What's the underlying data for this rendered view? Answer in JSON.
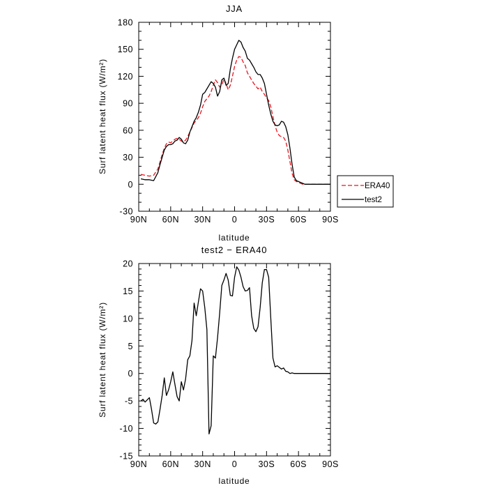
{
  "chart_data": [
    {
      "type": "line",
      "title": "JJA",
      "xlabel": "latitude",
      "ylabel": "Surf latent heat flux (W/m²)",
      "ylim": [
        -30,
        180
      ],
      "xlim": [
        90,
        -90
      ],
      "x_ticks": [
        90,
        60,
        30,
        0,
        -30,
        -60,
        -90
      ],
      "x_tick_labels": [
        "90N",
        "60N",
        "30N",
        "0",
        "30S",
        "60S",
        "90S"
      ],
      "y_ticks": [
        -30,
        0,
        30,
        60,
        90,
        120,
        150,
        180
      ],
      "y_tick_labels": [
        "-30",
        "0",
        "30",
        "60",
        "90",
        "120",
        "150",
        "180"
      ],
      "legend": {
        "position": "outside-right",
        "entries": [
          "ERA40",
          "test2"
        ]
      },
      "colors": {
        "ERA40": "#e8141e",
        "test2": "#000000"
      },
      "x": [
        88,
        84,
        80,
        76,
        72,
        70,
        68,
        66,
        64,
        62,
        60,
        58,
        56,
        54,
        52,
        50,
        48,
        46,
        44,
        42,
        40,
        38,
        36,
        34,
        32,
        30,
        28,
        26,
        24,
        22,
        20,
        18,
        16,
        14,
        12,
        10,
        8,
        6,
        4,
        2,
        0,
        -2,
        -4,
        -6,
        -8,
        -10,
        -12,
        -14,
        -16,
        -18,
        -20,
        -22,
        -24,
        -26,
        -28,
        -30,
        -32,
        -34,
        -36,
        -38,
        -40,
        -42,
        -44,
        -46,
        -48,
        -50,
        -52,
        -54,
        -56,
        -58,
        -60,
        -62,
        -64,
        -66,
        -68,
        -70,
        -72,
        -74,
        -76,
        -78,
        -80,
        -82,
        -84,
        -86,
        -88,
        -90
      ],
      "series": [
        {
          "name": "ERA40",
          "style": "dashed",
          "values": [
            11,
            10,
            9,
            10,
            17,
            25,
            33,
            40,
            45,
            47,
            46,
            48,
            50,
            51,
            50,
            48,
            47,
            49,
            53,
            58,
            63,
            68,
            71,
            74,
            79,
            86,
            92,
            95,
            98,
            103,
            110,
            116,
            113,
            108,
            110,
            117,
            112,
            105,
            110,
            120,
            131,
            138,
            142,
            141,
            136,
            132,
            124,
            120,
            116,
            112,
            109,
            106,
            108,
            103,
            100,
            96,
            93,
            86,
            75,
            65,
            58,
            54,
            53,
            52,
            48,
            38,
            25,
            12,
            5,
            3,
            2,
            1,
            0,
            0,
            0,
            0,
            0,
            0,
            0,
            0,
            0,
            0,
            0,
            0,
            0,
            0
          ]
        },
        {
          "name": "test2",
          "style": "solid",
          "values": [
            6,
            5,
            5,
            4,
            13,
            22,
            30,
            38,
            42,
            44,
            44,
            45,
            48,
            49,
            52,
            50,
            46,
            45,
            49,
            58,
            64,
            70,
            74,
            80,
            88,
            100,
            102,
            106,
            110,
            114,
            112,
            108,
            98,
            103,
            116,
            118,
            110,
            112,
            128,
            140,
            150,
            155,
            160,
            158,
            152,
            148,
            140,
            138,
            134,
            130,
            125,
            122,
            122,
            118,
            112,
            100,
            88,
            78,
            70,
            66,
            65,
            66,
            70,
            69,
            64,
            55,
            40,
            22,
            8,
            4,
            3,
            2,
            1,
            0,
            0,
            0,
            0,
            0,
            0,
            0,
            0,
            0,
            0,
            0,
            0,
            0
          ]
        }
      ]
    },
    {
      "type": "line",
      "title": "test2 − ERA40",
      "xlabel": "latitude",
      "ylabel": "Surf latent heat flux (W/m²)",
      "ylim": [
        -15,
        20
      ],
      "xlim": [
        90,
        -90
      ],
      "x_ticks": [
        90,
        60,
        30,
        0,
        -30,
        -60,
        -90
      ],
      "x_tick_labels": [
        "90N",
        "60N",
        "30N",
        "0",
        "30S",
        "60S",
        "90S"
      ],
      "y_ticks": [
        -15,
        -10,
        -5,
        0,
        5,
        10,
        15,
        20
      ],
      "y_tick_labels": [
        "-15",
        "-10",
        "-5",
        "0",
        "5",
        "10",
        "15",
        "20"
      ],
      "colors": {
        "diff": "#000000"
      },
      "x": [
        88,
        86,
        84,
        82,
        80,
        78,
        76,
        74,
        72,
        70,
        68,
        66,
        64,
        62,
        60,
        58,
        56,
        54,
        52,
        50,
        48,
        46,
        44,
        42,
        40,
        38,
        36,
        34,
        32,
        30,
        28,
        26,
        24,
        22,
        20,
        18,
        16,
        14,
        12,
        10,
        8,
        6,
        4,
        2,
        0,
        -2,
        -4,
        -6,
        -8,
        -10,
        -12,
        -14,
        -16,
        -18,
        -20,
        -22,
        -24,
        -26,
        -28,
        -30,
        -32,
        -34,
        -36,
        -38,
        -40,
        -42,
        -44,
        -46,
        -48,
        -50,
        -52,
        -54,
        -56,
        -58,
        -60,
        -62,
        -64,
        -66,
        -68,
        -70,
        -72,
        -74,
        -76,
        -78,
        -80,
        -82,
        -84,
        -86,
        -88,
        -90
      ],
      "series": [
        {
          "style": "solid",
          "values": [
            -5.0,
            -4.7,
            -5.2,
            -4.8,
            -4.4,
            -6.5,
            -9.0,
            -9.2,
            -8.8,
            -6.5,
            -4.0,
            -0.8,
            -4.0,
            -3.0,
            -1.5,
            0.3,
            -2.0,
            -4.2,
            -5.0,
            -1.5,
            -3.0,
            -1.0,
            2.5,
            3.2,
            6.0,
            12.8,
            10.5,
            13.0,
            15.4,
            15.0,
            12.0,
            8.0,
            -11.0,
            -9.5,
            3.2,
            2.8,
            6.5,
            11.0,
            16.0,
            17.0,
            18.2,
            17.0,
            14.2,
            14.1,
            17.5,
            19.4,
            18.8,
            17.5,
            15.8,
            15.0,
            15.1,
            15.6,
            10.5,
            8.2,
            7.6,
            8.5,
            12.0,
            16.5,
            18.9,
            18.9,
            17.5,
            10.0,
            2.8,
            1.2,
            1.4,
            1.1,
            0.8,
            1.0,
            0.4,
            0.3,
            0.0,
            0.1,
            0.0,
            0.0,
            0.0,
            0.0,
            0.0,
            0.0,
            0.0,
            0.0,
            0.0,
            0.0,
            0.0,
            0.0,
            0.0,
            0.0,
            0.0,
            0.0,
            0.0,
            0.0
          ]
        }
      ]
    }
  ]
}
